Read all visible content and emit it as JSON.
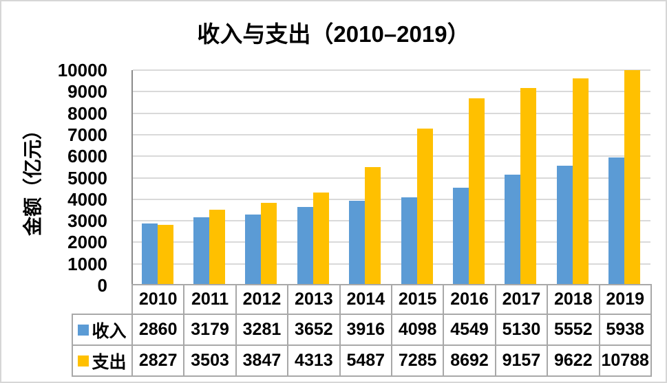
{
  "chart_data": {
    "type": "bar",
    "title": "收入与支出（2010–2019）",
    "ylabel": "金额（亿元）",
    "xlabel": "",
    "categories": [
      "2010",
      "2011",
      "2012",
      "2013",
      "2014",
      "2015",
      "2016",
      "2017",
      "2018",
      "2019"
    ],
    "series": [
      {
        "name": "收入",
        "color": "#5B9BD5",
        "values": [
          2860,
          3179,
          3281,
          3652,
          3916,
          4098,
          4549,
          5130,
          5552,
          5938
        ]
      },
      {
        "name": "支出",
        "color": "#FFC000",
        "values": [
          2827,
          3503,
          3847,
          4313,
          5487,
          7285,
          8692,
          9157,
          9622,
          10788
        ]
      }
    ],
    "ylim": [
      0,
      10000
    ],
    "ytick_step": 1000,
    "grid": true,
    "legend_position": "data-table-left-column",
    "colors": {
      "gridline": "#D9D9D9",
      "axis_line": "#8A8A8A",
      "table_border": "#A8A8A8",
      "frame_border": "#D6D6D6",
      "text": "#000000",
      "background": "#FFFFFF"
    }
  }
}
